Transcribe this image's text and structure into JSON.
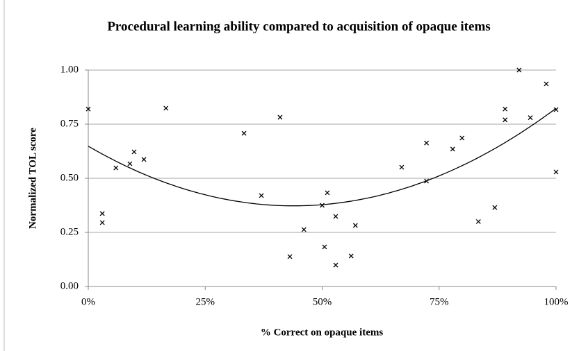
{
  "chart_data": {
    "type": "scatter",
    "title": "Procedural learning ability compared to acquisition of opaque items",
    "x_label": "% Correct on opaque items",
    "y_label": "Normalized TOL score",
    "x": [
      0,
      3.0,
      3.0,
      5.9,
      8.9,
      9.8,
      11.9,
      16.6,
      33.3,
      37.0,
      41.0,
      43.1,
      46.1,
      50.0,
      50.5,
      51.1,
      52.9,
      52.9,
      56.2,
      57.1,
      67.0,
      72.3,
      72.3,
      77.9,
      79.9,
      83.4,
      86.9,
      89.1,
      89.1,
      92.1,
      94.5,
      97.9,
      100,
      100
    ],
    "y": [
      0.82,
      0.337,
      0.295,
      0.548,
      0.567,
      0.622,
      0.587,
      0.824,
      0.708,
      0.42,
      0.782,
      0.138,
      0.263,
      0.375,
      0.183,
      0.433,
      0.324,
      0.099,
      0.141,
      0.282,
      0.551,
      0.663,
      0.487,
      0.635,
      0.686,
      0.3,
      0.365,
      0.82,
      0.77,
      1.0,
      0.78,
      0.936,
      0.817,
      0.529
    ],
    "color": "#000000",
    "trendline": {
      "type": "polynomial",
      "order": 2,
      "color": "#000000"
    },
    "xlim": [
      0,
      100
    ],
    "xticks": [
      {
        "value": 0,
        "label": "0%"
      },
      {
        "value": 25,
        "label": "25%"
      },
      {
        "value": 50,
        "label": "50%"
      },
      {
        "value": 75,
        "label": "75%"
      },
      {
        "value": 100,
        "label": "100%"
      }
    ],
    "ylim": [
      0,
      1
    ],
    "yticks": [
      {
        "value": 0,
        "label": "0.00"
      },
      {
        "value": 0.25,
        "label": "0.25"
      },
      {
        "value": 0.5,
        "label": "0.50"
      },
      {
        "value": 0.75,
        "label": "0.75"
      },
      {
        "value": 1,
        "label": "1.00"
      }
    ],
    "grid": true
  }
}
